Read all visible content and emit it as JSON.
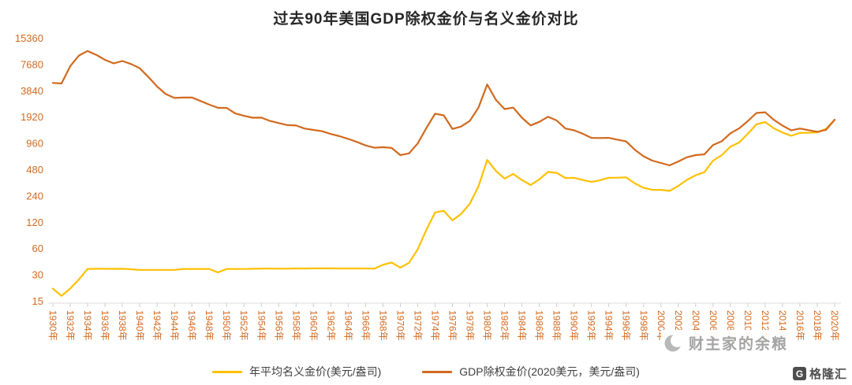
{
  "title": "过去90年美国GDP除权金价与名义金价对比",
  "watermark": {
    "text": "财主家的余粮",
    "icon": "moon-icon"
  },
  "logo": {
    "icon_letter": "G",
    "text": "格隆汇"
  },
  "legend": [
    {
      "label": "年平均名义金价(美元/盎司)",
      "color": "#FFC000"
    },
    {
      "label": "GDP除权金价(2020美元，美元/盎司)",
      "color": "#D2691E"
    }
  ],
  "chart_data": {
    "type": "line",
    "title": "过去90年美国GDP除权金价与名义金价对比",
    "xlabel": "",
    "ylabel": "",
    "y_scale": "log2",
    "ylim": [
      15,
      15360
    ],
    "grid": false,
    "legend_position": "bottom",
    "axis_label_color": "#D2691E",
    "y_ticks": [
      15360,
      7680,
      3840,
      1920,
      960,
      480,
      240,
      120,
      60,
      30,
      15
    ],
    "x_years": {
      "start": 1930,
      "end": 2020,
      "step": 1
    },
    "x_tick_labels": [
      "1930年",
      "1932年",
      "1934年",
      "1936年",
      "1938年",
      "1940年",
      "1942年",
      "1944年",
      "1946年",
      "1948年",
      "1950年",
      "1952年",
      "1954年",
      "1956年",
      "1958年",
      "1960年",
      "1962年",
      "1964年",
      "1966年",
      "1968年",
      "1970年",
      "1972年",
      "1974年",
      "1976年",
      "1978年",
      "1980年",
      "1982年",
      "1984年",
      "1986年",
      "1988年",
      "1990年",
      "1992年",
      "1994年",
      "1996年",
      "1998年",
      "2000年",
      "2002年",
      "2004年",
      "2006年",
      "2008年",
      "2010年",
      "2012年",
      "2014年",
      "2016年",
      "2018年",
      "2020年"
    ],
    "series": [
      {
        "name": "年平均名义金价(美元/盎司)",
        "color": "#FFC000",
        "values": [
          20.65,
          17.06,
          20.69,
          26.33,
          34.69,
          34.84,
          34.87,
          34.79,
          34.85,
          34.42,
          33.85,
          33.85,
          33.85,
          33.85,
          33.85,
          34.71,
          34.71,
          34.71,
          34.71,
          31.69,
          34.72,
          34.72,
          34.6,
          34.84,
          35.04,
          35.03,
          34.99,
          34.95,
          35.1,
          35.1,
          35.27,
          35.25,
          35.23,
          35.09,
          35.1,
          35.12,
          35.13,
          34.95,
          38.69,
          41.09,
          35.94,
          40.8,
          58.16,
          97.32,
          154.0,
          160.86,
          124.74,
          147.84,
          193.44,
          306.68,
          615.0,
          460.0,
          376.0,
          424.0,
          361.0,
          317.0,
          368.0,
          447.0,
          437.0,
          381.0,
          383.51,
          362.11,
          343.82,
          359.77,
          384.0,
          384.17,
          387.87,
          331.02,
          294.24,
          278.98,
          279.11,
          271.04,
          309.73,
          363.38,
          409.72,
          444.74,
          603.46,
          695.39,
          871.96,
          972.35,
          1224.53,
          1571.52,
          1668.98,
          1411.23,
          1266.4,
          1160.06,
          1250.8,
          1257.12,
          1268.49,
          1392.6,
          1769.64
        ]
      },
      {
        "name": "GDP除权金价(2020美元，美元/盎司)",
        "color": "#D2691E",
        "values": [
          4680,
          4606,
          7266,
          9618,
          10851,
          9797,
          8582,
          7817,
          8332,
          7693,
          6874,
          5467,
          4261,
          3483,
          3149,
          3179,
          3183,
          2902,
          2639,
          2427,
          2416,
          2089,
          1966,
          1868,
          1872,
          1717,
          1624,
          1538,
          1521,
          1404,
          1356,
          1308,
          1216,
          1148,
          1070,
          987,
          900,
          847,
          858,
          842,
          698,
          730,
          948,
          1423,
          2078,
          1990,
          1388,
          1481,
          1715,
          2435,
          4489,
          2993,
          2349,
          2435,
          1867,
          1524,
          1675,
          1918,
          1738,
          1407,
          1340,
          1225,
          1099,
          1093,
          1098,
          1047,
          1000,
          803,
          676,
          603,
          567,
          533,
          589,
          660,
          697,
          710,
          910,
          1004,
          1238,
          1409,
          1710,
          2116,
          2158,
          1766,
          1518,
          1338,
          1403,
          1346,
          1288,
          1358,
          1770
        ]
      }
    ]
  }
}
